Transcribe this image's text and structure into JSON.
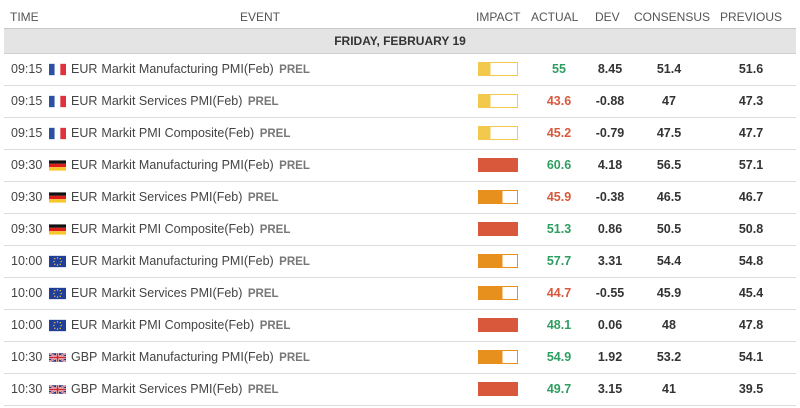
{
  "columns": {
    "time": "TIME",
    "event": "EVENT",
    "impact": "IMPACT",
    "actual": "ACTUAL",
    "dev": "DEV",
    "consensus": "CONSENSUS",
    "previous": "PREVIOUS"
  },
  "day_header": "FRIDAY, FEBRUARY 19",
  "colors": {
    "green": "#2e9e60",
    "red": "#d9583b",
    "impact_low": "#f2c94c",
    "impact_medium": "#e8901e",
    "impact_high": "#d9583b"
  },
  "rows": [
    {
      "time": "09:15",
      "flag": "france-flag",
      "currency": "EUR",
      "event": "Markit Manufacturing PMI(Feb)",
      "prel": "PREL",
      "impact": "low",
      "actual": "55",
      "actual_color": "green",
      "dev": "8.45",
      "consensus": "51.4",
      "previous": "51.6"
    },
    {
      "time": "09:15",
      "flag": "france-flag",
      "currency": "EUR",
      "event": "Markit Services PMI(Feb)",
      "prel": "PREL",
      "impact": "low",
      "actual": "43.6",
      "actual_color": "red",
      "dev": "-0.88",
      "consensus": "47",
      "previous": "47.3"
    },
    {
      "time": "09:15",
      "flag": "france-flag",
      "currency": "EUR",
      "event": "Markit PMI Composite(Feb)",
      "prel": "PREL",
      "impact": "low",
      "actual": "45.2",
      "actual_color": "red",
      "dev": "-0.79",
      "consensus": "47.5",
      "previous": "47.7"
    },
    {
      "time": "09:30",
      "flag": "germany-flag",
      "currency": "EUR",
      "event": "Markit Manufacturing PMI(Feb)",
      "prel": "PREL",
      "impact": "high",
      "actual": "60.6",
      "actual_color": "green",
      "dev": "4.18",
      "consensus": "56.5",
      "previous": "57.1"
    },
    {
      "time": "09:30",
      "flag": "germany-flag",
      "currency": "EUR",
      "event": "Markit Services PMI(Feb)",
      "prel": "PREL",
      "impact": "medium",
      "actual": "45.9",
      "actual_color": "red",
      "dev": "-0.38",
      "consensus": "46.5",
      "previous": "46.7"
    },
    {
      "time": "09:30",
      "flag": "germany-flag",
      "currency": "EUR",
      "event": "Markit PMI Composite(Feb)",
      "prel": "PREL",
      "impact": "high",
      "actual": "51.3",
      "actual_color": "green",
      "dev": "0.86",
      "consensus": "50.5",
      "previous": "50.8"
    },
    {
      "time": "10:00",
      "flag": "eu-flag",
      "currency": "EUR",
      "event": "Markit Manufacturing PMI(Feb)",
      "prel": "PREL",
      "impact": "medium",
      "actual": "57.7",
      "actual_color": "green",
      "dev": "3.31",
      "consensus": "54.4",
      "previous": "54.8"
    },
    {
      "time": "10:00",
      "flag": "eu-flag",
      "currency": "EUR",
      "event": "Markit Services PMI(Feb)",
      "prel": "PREL",
      "impact": "medium",
      "actual": "44.7",
      "actual_color": "red",
      "dev": "-0.55",
      "consensus": "45.9",
      "previous": "45.4"
    },
    {
      "time": "10:00",
      "flag": "eu-flag",
      "currency": "EUR",
      "event": "Markit PMI Composite(Feb)",
      "prel": "PREL",
      "impact": "high",
      "actual": "48.1",
      "actual_color": "green",
      "dev": "0.06",
      "consensus": "48",
      "previous": "47.8"
    },
    {
      "time": "10:30",
      "flag": "uk-flag",
      "currency": "GBP",
      "event": "Markit Manufacturing PMI(Feb)",
      "prel": "PREL",
      "impact": "medium",
      "actual": "54.9",
      "actual_color": "green",
      "dev": "1.92",
      "consensus": "53.2",
      "previous": "54.1"
    },
    {
      "time": "10:30",
      "flag": "uk-flag",
      "currency": "GBP",
      "event": "Markit Services PMI(Feb)",
      "prel": "PREL",
      "impact": "high",
      "actual": "49.7",
      "actual_color": "green",
      "dev": "3.15",
      "consensus": "41",
      "previous": "39.5"
    }
  ]
}
